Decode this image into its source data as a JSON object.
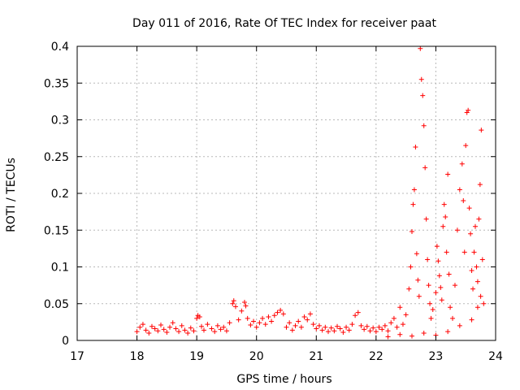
{
  "chart_data": {
    "type": "scatter",
    "title": "Day 011 of 2016, Rate Of TEC Index for receiver paat",
    "xlabel": "GPS time / hours",
    "ylabel": "ROTI / TECUs",
    "xlim": [
      17,
      24
    ],
    "ylim": [
      0,
      0.4
    ],
    "xticks": [
      "17",
      "18",
      "19",
      "20",
      "21",
      "22",
      "23",
      "24"
    ],
    "yticks": [
      "0",
      "0.05",
      "0.1",
      "0.15",
      "0.2",
      "0.25",
      "0.3",
      "0.35",
      "0.4"
    ],
    "grid": true,
    "marker": "+",
    "color": "#ff0000",
    "series": [
      {
        "name": "ROTI",
        "points": [
          [
            18.0,
            0.012
          ],
          [
            18.05,
            0.018
          ],
          [
            18.1,
            0.022
          ],
          [
            18.15,
            0.014
          ],
          [
            18.2,
            0.01
          ],
          [
            18.25,
            0.019
          ],
          [
            18.3,
            0.016
          ],
          [
            18.35,
            0.013
          ],
          [
            18.4,
            0.021
          ],
          [
            18.45,
            0.015
          ],
          [
            18.5,
            0.011
          ],
          [
            18.55,
            0.018
          ],
          [
            18.6,
            0.024
          ],
          [
            18.65,
            0.016
          ],
          [
            18.7,
            0.012
          ],
          [
            18.75,
            0.02
          ],
          [
            18.8,
            0.014
          ],
          [
            18.85,
            0.01
          ],
          [
            18.9,
            0.017
          ],
          [
            18.95,
            0.013
          ],
          [
            19.0,
            0.03
          ],
          [
            19.02,
            0.034
          ],
          [
            19.05,
            0.032
          ],
          [
            19.08,
            0.019
          ],
          [
            19.12,
            0.014
          ],
          [
            19.18,
            0.022
          ],
          [
            19.25,
            0.016
          ],
          [
            19.3,
            0.012
          ],
          [
            19.35,
            0.02
          ],
          [
            19.4,
            0.015
          ],
          [
            19.45,
            0.018
          ],
          [
            19.5,
            0.013
          ],
          [
            19.55,
            0.024
          ],
          [
            19.6,
            0.05
          ],
          [
            19.62,
            0.054
          ],
          [
            19.65,
            0.046
          ],
          [
            19.7,
            0.028
          ],
          [
            19.75,
            0.04
          ],
          [
            19.8,
            0.052
          ],
          [
            19.82,
            0.047
          ],
          [
            19.85,
            0.03
          ],
          [
            19.9,
            0.021
          ],
          [
            19.95,
            0.026
          ],
          [
            20.0,
            0.018
          ],
          [
            20.05,
            0.024
          ],
          [
            20.1,
            0.03
          ],
          [
            20.15,
            0.022
          ],
          [
            20.2,
            0.032
          ],
          [
            20.25,
            0.026
          ],
          [
            20.3,
            0.034
          ],
          [
            20.35,
            0.038
          ],
          [
            20.4,
            0.041
          ],
          [
            20.45,
            0.036
          ],
          [
            20.5,
            0.018
          ],
          [
            20.55,
            0.024
          ],
          [
            20.6,
            0.014
          ],
          [
            20.65,
            0.02
          ],
          [
            20.7,
            0.026
          ],
          [
            20.75,
            0.018
          ],
          [
            20.8,
            0.032
          ],
          [
            20.85,
            0.028
          ],
          [
            20.9,
            0.036
          ],
          [
            20.95,
            0.022
          ],
          [
            21.0,
            0.016
          ],
          [
            21.05,
            0.02
          ],
          [
            21.1,
            0.014
          ],
          [
            21.15,
            0.018
          ],
          [
            21.2,
            0.012
          ],
          [
            21.25,
            0.017
          ],
          [
            21.3,
            0.013
          ],
          [
            21.35,
            0.019
          ],
          [
            21.4,
            0.016
          ],
          [
            21.45,
            0.011
          ],
          [
            21.5,
            0.018
          ],
          [
            21.55,
            0.014
          ],
          [
            21.6,
            0.022
          ],
          [
            21.65,
            0.034
          ],
          [
            21.7,
            0.038
          ],
          [
            21.75,
            0.02
          ],
          [
            21.8,
            0.015
          ],
          [
            21.85,
            0.019
          ],
          [
            21.9,
            0.013
          ],
          [
            21.95,
            0.017
          ],
          [
            22.0,
            0.012
          ],
          [
            22.05,
            0.018
          ],
          [
            22.1,
            0.015
          ],
          [
            22.15,
            0.02
          ],
          [
            22.2,
            0.013
          ],
          [
            22.25,
            0.024
          ],
          [
            22.3,
            0.03
          ],
          [
            22.35,
            0.018
          ],
          [
            22.4,
            0.045
          ],
          [
            22.45,
            0.022
          ],
          [
            22.5,
            0.035
          ],
          [
            22.55,
            0.07
          ],
          [
            22.58,
            0.1
          ],
          [
            22.6,
            0.148
          ],
          [
            22.62,
            0.185
          ],
          [
            22.64,
            0.205
          ],
          [
            22.66,
            0.263
          ],
          [
            22.68,
            0.118
          ],
          [
            22.7,
            0.082
          ],
          [
            22.72,
            0.06
          ],
          [
            22.74,
            0.397
          ],
          [
            22.76,
            0.355
          ],
          [
            22.78,
            0.333
          ],
          [
            22.8,
            0.292
          ],
          [
            22.82,
            0.235
          ],
          [
            22.84,
            0.165
          ],
          [
            22.86,
            0.11
          ],
          [
            22.88,
            0.075
          ],
          [
            22.9,
            0.05
          ],
          [
            22.92,
            0.03
          ],
          [
            22.95,
            0.042
          ],
          [
            23.0,
            0.065
          ],
          [
            23.02,
            0.128
          ],
          [
            23.04,
            0.108
          ],
          [
            23.06,
            0.088
          ],
          [
            23.08,
            0.072
          ],
          [
            23.1,
            0.055
          ],
          [
            23.12,
            0.155
          ],
          [
            23.14,
            0.185
          ],
          [
            23.16,
            0.168
          ],
          [
            23.18,
            0.12
          ],
          [
            23.2,
            0.226
          ],
          [
            23.22,
            0.09
          ],
          [
            23.24,
            0.045
          ],
          [
            23.28,
            0.03
          ],
          [
            23.32,
            0.075
          ],
          [
            23.36,
            0.15
          ],
          [
            23.4,
            0.205
          ],
          [
            23.44,
            0.24
          ],
          [
            23.46,
            0.19
          ],
          [
            23.48,
            0.12
          ],
          [
            23.5,
            0.265
          ],
          [
            23.52,
            0.31
          ],
          [
            23.54,
            0.313
          ],
          [
            23.56,
            0.18
          ],
          [
            23.58,
            0.145
          ],
          [
            23.6,
            0.095
          ],
          [
            23.62,
            0.07
          ],
          [
            23.64,
            0.12
          ],
          [
            23.66,
            0.155
          ],
          [
            23.68,
            0.1
          ],
          [
            23.7,
            0.08
          ],
          [
            23.72,
            0.165
          ],
          [
            23.74,
            0.212
          ],
          [
            23.76,
            0.286
          ],
          [
            23.78,
            0.11
          ],
          [
            23.8,
            0.05
          ],
          [
            22.2,
            0.005
          ],
          [
            22.4,
            0.008
          ],
          [
            22.6,
            0.006
          ],
          [
            22.8,
            0.01
          ],
          [
            23.0,
            0.007
          ],
          [
            23.2,
            0.012
          ],
          [
            23.4,
            0.02
          ],
          [
            23.6,
            0.028
          ],
          [
            23.7,
            0.045
          ],
          [
            23.75,
            0.06
          ]
        ]
      }
    ]
  }
}
